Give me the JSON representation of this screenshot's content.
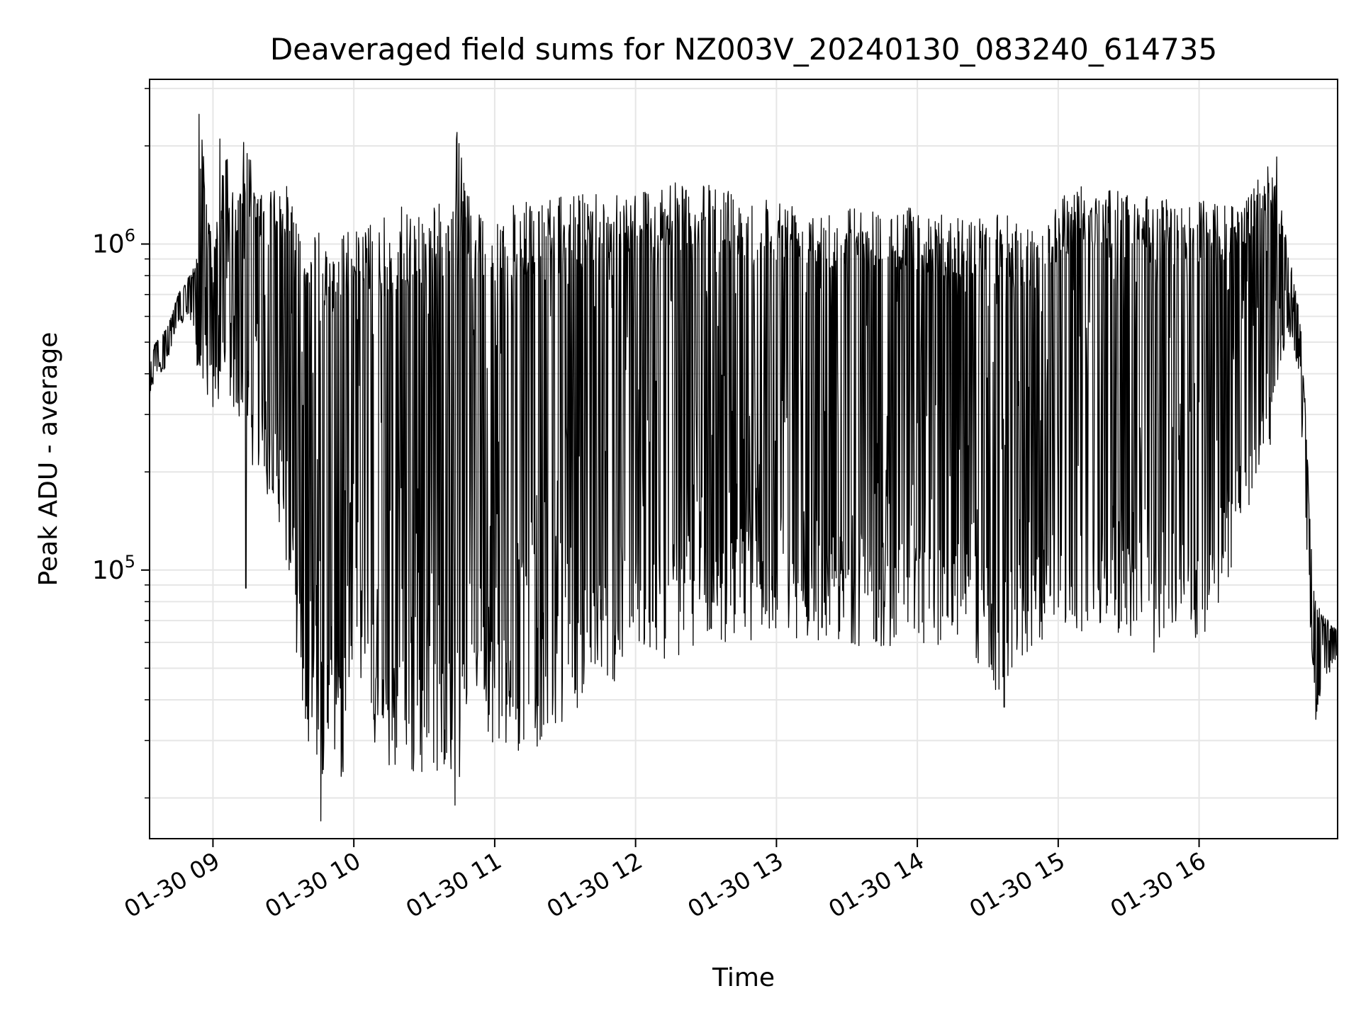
{
  "chart_data": {
    "type": "line",
    "title": "Deaveraged field sums for NZ003V_20240130_083240_614735",
    "xlabel": "Time",
    "ylabel": "Peak ADU - average",
    "yscale": "log",
    "xlim": [
      "2024-01-30 08:33",
      "2024-01-30 16:59"
    ],
    "ylim": [
      15000,
      3200000
    ],
    "grid": true,
    "line_color": "#000000",
    "x_tick_labels": [
      {
        "label": "01-30 09",
        "value": "2024-01-30 09:00"
      },
      {
        "label": "01-30 10",
        "value": "2024-01-30 10:00"
      },
      {
        "label": "01-30 11",
        "value": "2024-01-30 11:00"
      },
      {
        "label": "01-30 12",
        "value": "2024-01-30 12:00"
      },
      {
        "label": "01-30 13",
        "value": "2024-01-30 13:00"
      },
      {
        "label": "01-30 14",
        "value": "2024-01-30 14:00"
      },
      {
        "label": "01-30 15",
        "value": "2024-01-30 15:00"
      },
      {
        "label": "01-30 16",
        "value": "2024-01-30 16:00"
      }
    ],
    "y_tick_labels": [
      {
        "base": "10",
        "exp": "5",
        "value": 100000
      },
      {
        "base": "10",
        "exp": "6",
        "value": 1000000
      }
    ],
    "series": [
      {
        "name": "",
        "x": [
          "2024-01-30 08:33",
          "2024-01-30 08:35",
          "2024-01-30 08:40",
          "2024-01-30 08:45",
          "2024-01-30 08:50",
          "2024-01-30 08:54",
          "2024-01-30 08:55",
          "2024-01-30 09:00",
          "2024-01-30 09:05",
          "2024-01-30 09:10",
          "2024-01-30 09:15",
          "2024-01-30 09:20",
          "2024-01-30 09:25",
          "2024-01-30 09:30",
          "2024-01-30 09:35",
          "2024-01-30 09:40",
          "2024-01-30 09:45",
          "2024-01-30 09:50",
          "2024-01-30 09:55",
          "2024-01-30 10:00",
          "2024-01-30 10:10",
          "2024-01-30 10:20",
          "2024-01-30 10:30",
          "2024-01-30 10:40",
          "2024-01-30 10:44",
          "2024-01-30 10:50",
          "2024-01-30 11:00",
          "2024-01-30 11:15",
          "2024-01-30 11:30",
          "2024-01-30 11:45",
          "2024-01-30 12:00",
          "2024-01-30 12:20",
          "2024-01-30 12:40",
          "2024-01-30 13:00",
          "2024-01-30 13:20",
          "2024-01-30 13:40",
          "2024-01-30 14:00",
          "2024-01-30 14:20",
          "2024-01-30 14:36",
          "2024-01-30 14:50",
          "2024-01-30 15:00",
          "2024-01-30 15:10",
          "2024-01-30 15:20",
          "2024-01-30 15:30",
          "2024-01-30 15:40",
          "2024-01-30 15:50",
          "2024-01-30 16:00",
          "2024-01-30 16:10",
          "2024-01-30 16:20",
          "2024-01-30 16:30",
          "2024-01-30 16:35",
          "2024-01-30 16:40",
          "2024-01-30 16:43",
          "2024-01-30 16:45",
          "2024-01-30 16:48",
          "2024-01-30 16:50",
          "2024-01-30 16:55",
          "2024-01-30 16:59"
        ],
        "upper": [
          430000,
          500000,
          550000,
          700000,
          800000,
          950000,
          2500000,
          900000,
          2000000,
          1300000,
          2000000,
          1400000,
          1500000,
          1600000,
          1300000,
          1100000,
          1100000,
          1000000,
          1100000,
          1100000,
          1200000,
          1300000,
          1300000,
          1400000,
          2200000,
          1300000,
          1300000,
          1350000,
          1400000,
          1500000,
          1500000,
          1550000,
          1500000,
          1400000,
          1350000,
          1300000,
          1300000,
          1200000,
          1250000,
          1100000,
          1400000,
          1600000,
          1450000,
          1500000,
          1400000,
          1350000,
          1400000,
          1300000,
          1400000,
          1800000,
          1300000,
          800000,
          600000,
          350000,
          110000,
          80000,
          70000,
          65000
        ],
        "lower": [
          330000,
          380000,
          420000,
          550000,
          600000,
          380000,
          380000,
          300000,
          350000,
          300000,
          250000,
          150000,
          180000,
          120000,
          60000,
          25000,
          20000,
          30000,
          22000,
          60000,
          25000,
          23000,
          22000,
          26000,
          20000,
          45000,
          28000,
          27000,
          35000,
          42000,
          50000,
          55000,
          60000,
          62000,
          60000,
          58000,
          58000,
          60000,
          38000,
          60000,
          60000,
          65000,
          63000,
          60000,
          55000,
          60000,
          60000,
          80000,
          150000,
          200000,
          450000,
          500000,
          350000,
          150000,
          50000,
          32000,
          45000,
          55000
        ],
        "spikes": [
          {
            "x": "2024-01-30 08:54",
            "y": 2500000
          },
          {
            "x": "2024-01-30 09:03",
            "y": 2100000
          },
          {
            "x": "2024-01-30 09:13",
            "y": 2050000
          },
          {
            "x": "2024-01-30 10:44",
            "y": 2200000
          },
          {
            "x": "2024-01-30 16:33",
            "y": 1850000
          },
          {
            "x": "2024-01-30 09:14",
            "y": 88000
          },
          {
            "x": "2024-01-30 09:46",
            "y": 17000
          },
          {
            "x": "2024-01-30 10:43",
            "y": 19000
          },
          {
            "x": "2024-01-30 14:37",
            "y": 38000
          }
        ]
      }
    ]
  }
}
